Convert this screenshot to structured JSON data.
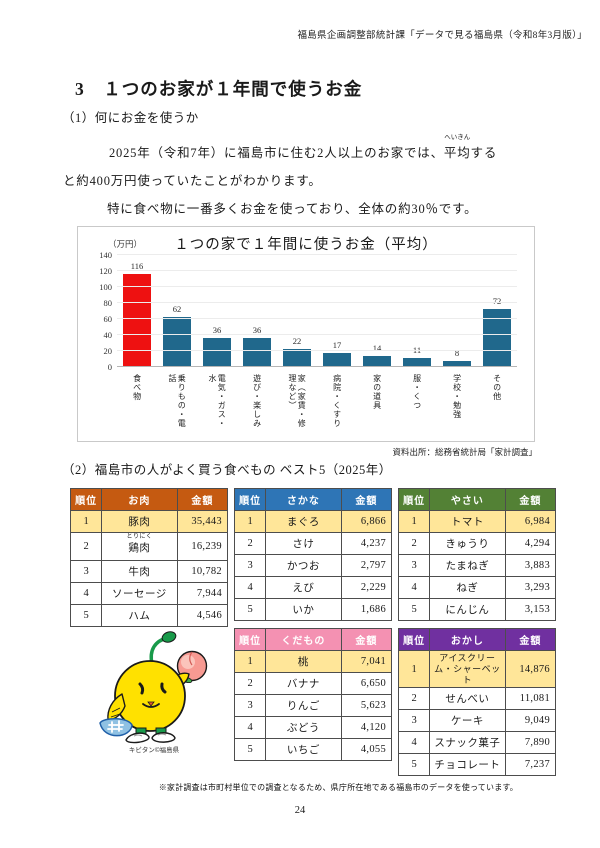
{
  "header": {
    "text": "福島県企画調整部統計課「データで見る福島県（令和8年3月版）」"
  },
  "title": "3　１つのお家が１年間で使うお金",
  "section1": {
    "heading": "（1）何にお金を使うか",
    "para1_pre": "2025年（令和7年）に福島市に住む2人以上のお家では、",
    "para1_ruby_base": "平均",
    "para1_ruby_text": "へいきん",
    "para1_post": "する",
    "para1_line2": "と約400万円使っていたことがわかります。",
    "para2": "特に食べ物に一番多くお金を使っており、全体の約30％です。"
  },
  "chart_data": {
    "type": "bar",
    "title": "１つの家で１年間に使うお金（平均）",
    "unit": "（万円）",
    "categories": [
      "食べ物",
      "乗りもの・電話",
      "電気・ガス・水",
      "遊び・楽しみ",
      "家（家賃・修理など）",
      "病院・くすり",
      "家の道具",
      "服・くつ",
      "学校・勉強",
      "その他"
    ],
    "values": [
      116,
      62,
      36,
      36,
      22,
      17,
      14,
      11,
      8,
      72
    ],
    "highlight_index": 0,
    "highlight_color": "#ee1111",
    "bar_color": "#20688c",
    "ylim": [
      0,
      140
    ],
    "yticks": [
      0,
      20,
      40,
      60,
      80,
      100,
      120,
      140
    ],
    "grid": true,
    "source": "資料出所：総務省統計局「家計調査」"
  },
  "section2": {
    "heading": "（2）福島市の人がよく買う食べもの ベスト5（2025年）"
  },
  "table_labels": {
    "rank": "順位",
    "amount": "金額"
  },
  "highlight_row_color": "#FFE699",
  "tables": [
    {
      "key": "meat",
      "name": "お肉",
      "header_color": "#C55A11",
      "rows": [
        {
          "rank": "1",
          "item": "豚肉",
          "amount": "35,443"
        },
        {
          "rank": "2",
          "item": "鶏肉",
          "ruby": "とりにく",
          "amount": "16,239"
        },
        {
          "rank": "3",
          "item": "牛肉",
          "amount": "10,782"
        },
        {
          "rank": "4",
          "item": "ソーセージ",
          "amount": "7,944"
        },
        {
          "rank": "5",
          "item": "ハム",
          "amount": "4,546"
        }
      ]
    },
    {
      "key": "fish",
      "name": "さかな",
      "header_color": "#2E75B6",
      "rows": [
        {
          "rank": "1",
          "item": "まぐろ",
          "amount": "6,866"
        },
        {
          "rank": "2",
          "item": "さけ",
          "amount": "4,237"
        },
        {
          "rank": "3",
          "item": "かつお",
          "amount": "2,797"
        },
        {
          "rank": "4",
          "item": "えび",
          "amount": "2,229"
        },
        {
          "rank": "5",
          "item": "いか",
          "amount": "1,686"
        }
      ]
    },
    {
      "key": "vegetable",
      "name": "やさい",
      "header_color": "#538135",
      "rows": [
        {
          "rank": "1",
          "item": "トマト",
          "amount": "6,984"
        },
        {
          "rank": "2",
          "item": "きゅうり",
          "amount": "4,294"
        },
        {
          "rank": "3",
          "item": "たまねぎ",
          "amount": "3,883"
        },
        {
          "rank": "4",
          "item": "ねぎ",
          "amount": "3,293"
        },
        {
          "rank": "5",
          "item": "にんじん",
          "amount": "3,153"
        }
      ]
    },
    {
      "key": "fruit",
      "name": "くだもの",
      "header_color": "#F491B2",
      "rows": [
        {
          "rank": "1",
          "item": "桃",
          "amount": "7,041"
        },
        {
          "rank": "2",
          "item": "バナナ",
          "amount": "6,650"
        },
        {
          "rank": "3",
          "item": "りんご",
          "amount": "5,623"
        },
        {
          "rank": "4",
          "item": "ぶどう",
          "amount": "4,120"
        },
        {
          "rank": "5",
          "item": "いちご",
          "amount": "4,055"
        }
      ]
    },
    {
      "key": "sweets",
      "name": "おかし",
      "header_color": "#7030A0",
      "rows": [
        {
          "rank": "1",
          "item": "アイスクリーム・シャーベット",
          "amount": "14,876"
        },
        {
          "rank": "2",
          "item": "せんべい",
          "amount": "11,081"
        },
        {
          "rank": "3",
          "item": "ケーキ",
          "amount": "9,049"
        },
        {
          "rank": "4",
          "item": "スナック菓子",
          "amount": "7,890"
        },
        {
          "rank": "5",
          "item": "チョコレート",
          "amount": "7,237"
        }
      ]
    }
  ],
  "mascot_caption": "キビタン©福島県",
  "footnote": "※家計調査は市町村単位での調査となるため、県庁所在地である福島市のデータを使っています。",
  "page_number": "24"
}
